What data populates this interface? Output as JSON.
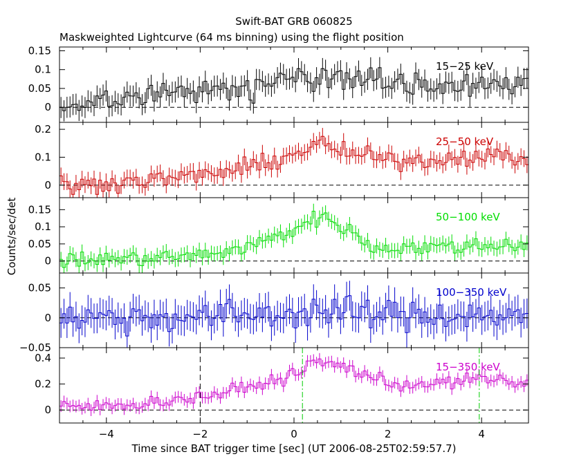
{
  "chart_data": {
    "type": "line",
    "title": "Swift-BAT GRB 060825",
    "subtitle": "Maskweighted Lightcurve (64 ms binning) using the flight position",
    "xlabel": "Time since BAT trigger time [sec] (UT 2006-08-25T02:59:57.7)",
    "ylabel": "Counts/sec/det",
    "xlim": [
      -5,
      5
    ],
    "x_ticks": [
      "−4",
      "−2",
      "0",
      "2",
      "4"
    ],
    "x_tick_values": [
      -4,
      -2,
      0,
      2,
      4
    ],
    "bin_width": 0.064,
    "vlines": [
      {
        "x": -2.0,
        "style": "dashed",
        "color": "#000000",
        "panels": [
          4
        ]
      },
      {
        "x": 0.18,
        "style": "dash-dot",
        "color": "#00cc00",
        "panels": [
          4
        ]
      },
      {
        "x": 3.95,
        "style": "dash-dot",
        "color": "#00cc00",
        "panels": [
          4
        ]
      }
    ],
    "panels": [
      {
        "name": "15−25 keV",
        "color": "#000000",
        "ylim": [
          -0.04,
          0.16
        ],
        "y_ticks": [
          "0.15",
          "0.1",
          "0.05",
          "0"
        ],
        "y_tick_values": [
          0.15,
          0.1,
          0.05,
          0
        ],
        "noise": 0.024,
        "err": 0.028,
        "profile": [
          [
            -5,
            0.01
          ],
          [
            -4,
            0.015
          ],
          [
            -3,
            0.03
          ],
          [
            -2,
            0.045
          ],
          [
            -1,
            0.055
          ],
          [
            0,
            0.075
          ],
          [
            0.5,
            0.085
          ],
          [
            1,
            0.08
          ],
          [
            2,
            0.07
          ],
          [
            3,
            0.06
          ],
          [
            4,
            0.065
          ],
          [
            5,
            0.065
          ]
        ]
      },
      {
        "name": "25−50 keV",
        "color": "#cc0000",
        "ylim": [
          -0.045,
          0.225
        ],
        "y_ticks": [
          "0.2",
          "0.1",
          "0"
        ],
        "y_tick_values": [
          0.2,
          0.1,
          0
        ],
        "noise": 0.022,
        "err": 0.03,
        "profile": [
          [
            -5,
            0.01
          ],
          [
            -4.5,
            -0.005
          ],
          [
            -4,
            0.01
          ],
          [
            -3,
            0.02
          ],
          [
            -2,
            0.035
          ],
          [
            -1,
            0.06
          ],
          [
            0,
            0.11
          ],
          [
            0.5,
            0.15
          ],
          [
            1,
            0.12
          ],
          [
            2,
            0.09
          ],
          [
            3,
            0.09
          ],
          [
            4,
            0.11
          ],
          [
            5,
            0.09
          ]
        ]
      },
      {
        "name": "50−100 keV",
        "color": "#00dd00",
        "ylim": [
          -0.035,
          0.185
        ],
        "y_ticks": [
          "0.15",
          "0.1",
          "0.05",
          "0"
        ],
        "y_tick_values": [
          0.15,
          0.1,
          0.05,
          0
        ],
        "noise": 0.016,
        "err": 0.022,
        "profile": [
          [
            -5,
            0.0
          ],
          [
            -4,
            0.005
          ],
          [
            -3,
            0.01
          ],
          [
            -2,
            0.015
          ],
          [
            -1,
            0.04
          ],
          [
            0,
            0.09
          ],
          [
            0.3,
            0.12
          ],
          [
            0.7,
            0.125
          ],
          [
            1.2,
            0.09
          ],
          [
            1.6,
            0.04
          ],
          [
            3,
            0.04
          ],
          [
            5,
            0.05
          ]
        ]
      },
      {
        "name": "100−350 keV",
        "color": "#0000cc",
        "ylim": [
          -0.05,
          0.075
        ],
        "y_ticks": [
          "0.05",
          "0",
          "−0.05"
        ],
        "y_tick_values": [
          0.05,
          0,
          -0.05
        ],
        "noise": 0.018,
        "err": 0.025,
        "profile": [
          [
            -5,
            0.0
          ],
          [
            -2,
            0.002
          ],
          [
            0,
            0.008
          ],
          [
            0.5,
            0.012
          ],
          [
            2,
            0.005
          ],
          [
            5,
            0.004
          ]
        ]
      },
      {
        "name": "15−350 keV",
        "color": "#cc00cc",
        "ylim": [
          -0.1,
          0.48
        ],
        "y_ticks": [
          "0.4",
          "0.2",
          "0"
        ],
        "y_tick_values": [
          0.4,
          0.2,
          0
        ],
        "noise": 0.035,
        "err": 0.045,
        "profile": [
          [
            -5,
            0.02
          ],
          [
            -4,
            0.03
          ],
          [
            -3,
            0.06
          ],
          [
            -2,
            0.1
          ],
          [
            -1,
            0.17
          ],
          [
            0,
            0.27
          ],
          [
            0.4,
            0.37
          ],
          [
            0.9,
            0.35
          ],
          [
            1.5,
            0.28
          ],
          [
            2,
            0.2
          ],
          [
            3,
            0.2
          ],
          [
            4,
            0.24
          ],
          [
            5,
            0.2
          ]
        ]
      }
    ]
  }
}
